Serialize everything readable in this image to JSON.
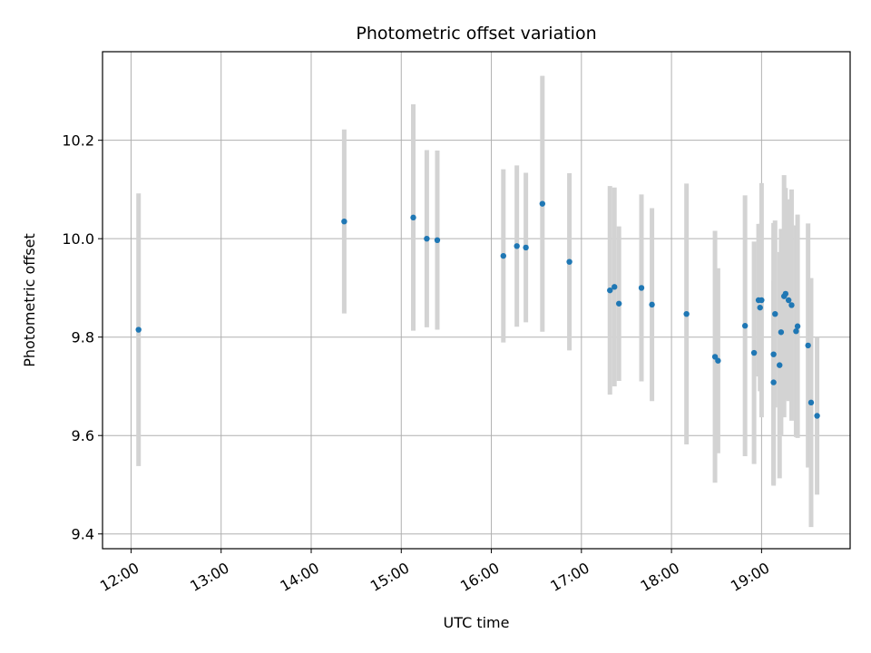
{
  "chart_data": {
    "type": "scatter",
    "title": "Photometric offset variation",
    "xlabel": "UTC time",
    "ylabel": "Photometric offset",
    "xlim": [
      "11:41",
      "19:59"
    ],
    "ylim": [
      9.37,
      10.38
    ],
    "x_ticks": [
      "12:00",
      "13:00",
      "14:00",
      "15:00",
      "16:00",
      "17:00",
      "18:00",
      "19:00"
    ],
    "y_ticks": [
      9.4,
      9.6,
      9.8,
      10.0,
      10.2
    ],
    "grid": true,
    "colors": {
      "point": "#1f77b4",
      "errorbar": "#d3d3d3",
      "grid": "#b0b0b0"
    },
    "points": [
      {
        "x": "12:05",
        "y": 9.815,
        "err": 0.277
      },
      {
        "x": "14:22",
        "y": 10.035,
        "err": 0.187
      },
      {
        "x": "15:08",
        "y": 10.043,
        "err": 0.23
      },
      {
        "x": "15:17",
        "y": 10.0,
        "err": 0.18
      },
      {
        "x": "15:24",
        "y": 9.997,
        "err": 0.182
      },
      {
        "x": "16:08",
        "y": 9.965,
        "err": 0.176
      },
      {
        "x": "16:17",
        "y": 9.985,
        "err": 0.164
      },
      {
        "x": "16:23",
        "y": 9.982,
        "err": 0.152
      },
      {
        "x": "16:34",
        "y": 10.071,
        "err": 0.26
      },
      {
        "x": "16:52",
        "y": 9.953,
        "err": 0.18
      },
      {
        "x": "17:19",
        "y": 9.895,
        "err": 0.212
      },
      {
        "x": "17:22",
        "y": 9.902,
        "err": 0.202
      },
      {
        "x": "17:25",
        "y": 9.868,
        "err": 0.157
      },
      {
        "x": "17:40",
        "y": 9.9,
        "err": 0.19
      },
      {
        "x": "17:47",
        "y": 9.866,
        "err": 0.196
      },
      {
        "x": "18:10",
        "y": 9.847,
        "err": 0.265
      },
      {
        "x": "18:29",
        "y": 9.76,
        "err": 0.256
      },
      {
        "x": "18:31",
        "y": 9.752,
        "err": 0.188
      },
      {
        "x": "18:49",
        "y": 9.823,
        "err": 0.265
      },
      {
        "x": "18:55",
        "y": 9.768,
        "err": 0.226
      },
      {
        "x": "18:58",
        "y": 9.875,
        "err": 0.155
      },
      {
        "x": "18:59",
        "y": 9.86,
        "err": 0.17
      },
      {
        "x": "19:00",
        "y": 9.875,
        "err": 0.238
      },
      {
        "x": "19:08",
        "y": 9.708,
        "err": 0.207
      },
      {
        "x": "19:08",
        "y": 9.765,
        "err": 0.267
      },
      {
        "x": "19:09",
        "y": 9.847,
        "err": 0.19
      },
      {
        "x": "19:12",
        "y": 9.743,
        "err": 0.23
      },
      {
        "x": "19:13",
        "y": 9.81,
        "err": 0.21
      },
      {
        "x": "19:15",
        "y": 9.883,
        "err": 0.246
      },
      {
        "x": "19:16",
        "y": 9.888,
        "err": 0.215
      },
      {
        "x": "19:18",
        "y": 9.875,
        "err": 0.205
      },
      {
        "x": "19:20",
        "y": 9.865,
        "err": 0.235
      },
      {
        "x": "19:23",
        "y": 9.812,
        "err": 0.215
      },
      {
        "x": "19:24",
        "y": 9.822,
        "err": 0.227
      },
      {
        "x": "19:31",
        "y": 9.783,
        "err": 0.248
      },
      {
        "x": "19:33",
        "y": 9.667,
        "err": 0.253
      },
      {
        "x": "19:37",
        "y": 9.64,
        "err": 0.16
      }
    ]
  }
}
